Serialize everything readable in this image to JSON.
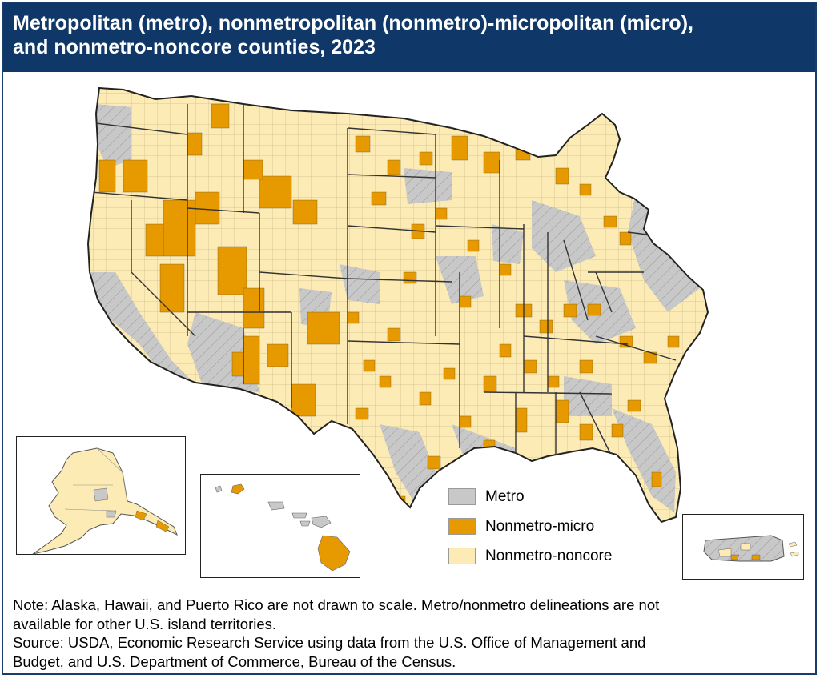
{
  "title": {
    "line1": "Metropolitan (metro), nonmetropolitan (nonmetro)-micropolitan (micro),",
    "line2": "and nonmetro-noncore counties, 2023"
  },
  "legend": {
    "items": [
      {
        "label": "Metro",
        "color": "#c8c8c8"
      },
      {
        "label": "Nonmetro-micro",
        "color": "#e69a00"
      },
      {
        "label": "Nonmetro-noncore",
        "color": "#fdebb5"
      }
    ]
  },
  "colors": {
    "title_background": "#0f3868",
    "border": "#173e6b",
    "state_boundary": "#333333",
    "county_boundary": "#8d8d8d"
  },
  "insets": [
    "Alaska",
    "Hawaii",
    "Puerto Rico"
  ],
  "notes": {
    "line1": "Note: Alaska, Hawaii, and Puerto Rico are not drawn to scale. Metro/nonmetro delineations are not",
    "line2": "available for other U.S. island territories.",
    "line3": "Source: USDA, Economic Research Service using data from the U.S. Office of Management and",
    "line4": "Budget, and U.S. Department of Commerce, Bureau of the Census."
  }
}
